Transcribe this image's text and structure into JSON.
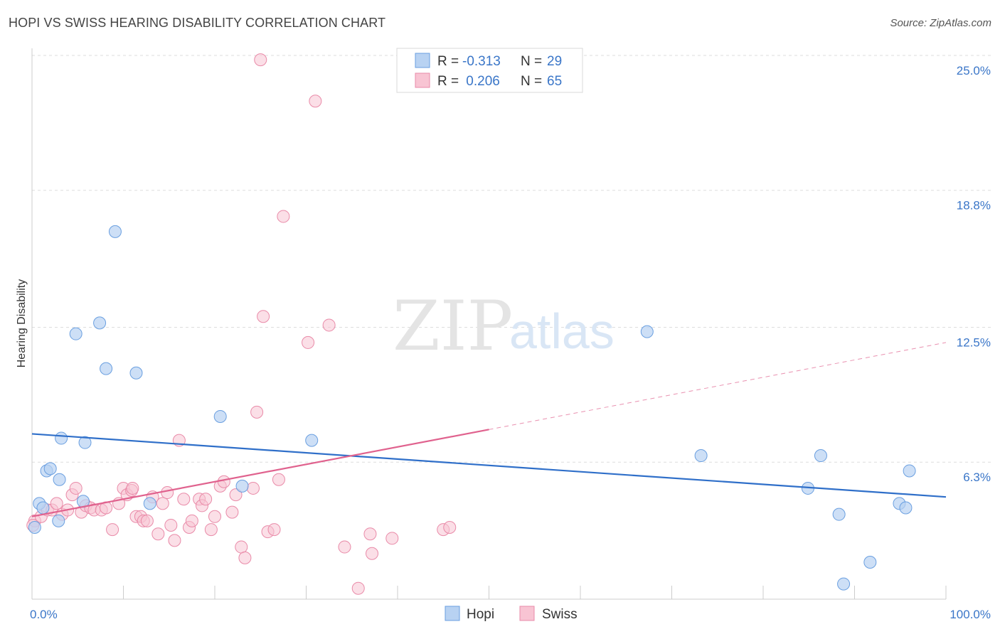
{
  "title": "HOPI VS SWISS HEARING DISABILITY CORRELATION CHART",
  "source": "Source: ZipAtlas.com",
  "watermark": {
    "zip": "ZIP",
    "atlas": "atlas"
  },
  "colors": {
    "hopi_fill": "#b8d2f2",
    "hopi_stroke": "#6a9fe0",
    "hopi_line": "#2f6fc9",
    "swiss_fill": "#f8c4d3",
    "swiss_stroke": "#e98aa8",
    "swiss_line": "#e0628e",
    "axis_text": "#3a76c8",
    "grid": "#dddddd"
  },
  "legend": {
    "rows": [
      {
        "r_label": "R =",
        "r_value": "-0.313",
        "n_label": "N =",
        "n_value": "29"
      },
      {
        "r_label": "R =",
        "r_value": " 0.206",
        "n_label": "N =",
        "n_value": "65"
      }
    ]
  },
  "bottom_legend": [
    "Hopi",
    "Swiss"
  ],
  "chart_data": {
    "type": "scatter",
    "ylabel": "Hearing Disability",
    "xlim": [
      0,
      100
    ],
    "ylim": [
      0,
      25
    ],
    "x_tick_labels": [
      "0.0%",
      "100.0%"
    ],
    "y_ticks": [
      {
        "value": 6.3,
        "label": "6.3%"
      },
      {
        "value": 12.5,
        "label": "12.5%"
      },
      {
        "value": 18.8,
        "label": "18.8%"
      },
      {
        "value": 25.0,
        "label": "25.0%"
      }
    ],
    "grid": true,
    "series": [
      {
        "name": "Hopi",
        "points": [
          [
            0.3,
            3.3
          ],
          [
            0.8,
            4.4
          ],
          [
            1.2,
            4.2
          ],
          [
            1.6,
            5.9
          ],
          [
            2.0,
            6.0
          ],
          [
            2.9,
            3.6
          ],
          [
            3.0,
            5.5
          ],
          [
            3.2,
            7.4
          ],
          [
            4.8,
            12.2
          ],
          [
            5.6,
            4.5
          ],
          [
            5.8,
            7.2
          ],
          [
            7.4,
            12.7
          ],
          [
            8.1,
            10.6
          ],
          [
            9.1,
            16.9
          ],
          [
            11.4,
            10.4
          ],
          [
            12.9,
            4.4
          ],
          [
            20.6,
            8.4
          ],
          [
            23.0,
            5.2
          ],
          [
            30.6,
            7.3
          ],
          [
            67.3,
            12.3
          ],
          [
            73.2,
            6.6
          ],
          [
            84.9,
            5.1
          ],
          [
            86.3,
            6.6
          ],
          [
            88.3,
            3.9
          ],
          [
            88.8,
            0.7
          ],
          [
            91.7,
            1.7
          ],
          [
            94.9,
            4.4
          ],
          [
            95.6,
            4.2
          ],
          [
            96.0,
            5.9
          ]
        ],
        "trend": {
          "x": [
            0,
            100
          ],
          "y": [
            7.6,
            4.7
          ]
        }
      },
      {
        "name": "Swiss",
        "points": [
          [
            0.3,
            3.6
          ],
          [
            1.0,
            3.8
          ],
          [
            1.7,
            4.1
          ],
          [
            2.2,
            4.1
          ],
          [
            2.7,
            4.4
          ],
          [
            3.3,
            3.9
          ],
          [
            3.9,
            4.1
          ],
          [
            4.4,
            4.8
          ],
          [
            4.8,
            5.1
          ],
          [
            5.4,
            4.0
          ],
          [
            5.9,
            4.3
          ],
          [
            6.4,
            4.2
          ],
          [
            6.8,
            4.1
          ],
          [
            7.6,
            4.1
          ],
          [
            8.1,
            4.2
          ],
          [
            8.8,
            3.2
          ],
          [
            9.5,
            4.4
          ],
          [
            10.0,
            5.1
          ],
          [
            10.4,
            4.8
          ],
          [
            10.9,
            5.0
          ],
          [
            11.0,
            5.1
          ],
          [
            11.4,
            3.8
          ],
          [
            11.9,
            3.8
          ],
          [
            12.2,
            3.6
          ],
          [
            12.6,
            3.6
          ],
          [
            13.2,
            4.7
          ],
          [
            13.8,
            3.0
          ],
          [
            14.3,
            4.4
          ],
          [
            14.8,
            4.9
          ],
          [
            15.2,
            3.4
          ],
          [
            15.6,
            2.7
          ],
          [
            16.1,
            7.3
          ],
          [
            16.6,
            4.6
          ],
          [
            17.2,
            3.3
          ],
          [
            17.5,
            3.6
          ],
          [
            18.3,
            4.6
          ],
          [
            18.6,
            4.3
          ],
          [
            19.0,
            4.6
          ],
          [
            19.6,
            3.2
          ],
          [
            20.0,
            3.8
          ],
          [
            20.6,
            5.2
          ],
          [
            21.0,
            5.4
          ],
          [
            21.9,
            4.0
          ],
          [
            22.3,
            4.8
          ],
          [
            22.9,
            2.4
          ],
          [
            23.3,
            1.9
          ],
          [
            24.2,
            5.1
          ],
          [
            24.6,
            8.6
          ],
          [
            25.0,
            24.8
          ],
          [
            25.3,
            13.0
          ],
          [
            25.8,
            3.1
          ],
          [
            26.5,
            3.2
          ],
          [
            27.0,
            5.5
          ],
          [
            27.5,
            17.6
          ],
          [
            30.2,
            11.8
          ],
          [
            31.0,
            22.9
          ],
          [
            32.5,
            12.6
          ],
          [
            34.2,
            2.4
          ],
          [
            35.7,
            0.5
          ],
          [
            37.0,
            3.0
          ],
          [
            37.2,
            2.1
          ],
          [
            39.4,
            2.8
          ],
          [
            45.0,
            3.2
          ],
          [
            45.7,
            3.3
          ],
          [
            0.1,
            3.4
          ]
        ],
        "trend": {
          "x": [
            0,
            50
          ],
          "y": [
            3.8,
            7.8
          ]
        },
        "trend_extension": {
          "x": [
            50,
            100
          ],
          "y": [
            7.8,
            11.8
          ]
        }
      }
    ]
  }
}
